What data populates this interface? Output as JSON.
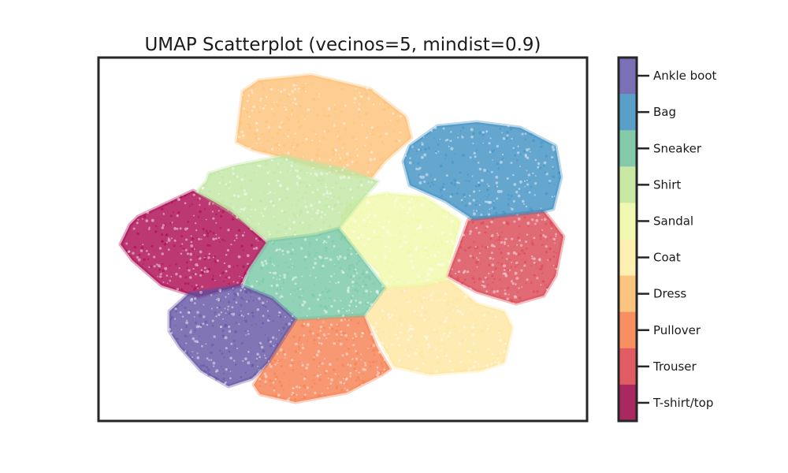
{
  "chart_data": {
    "type": "scatter",
    "title": "UMAP Scatterplot (vecinos=5, mindist=0.9)",
    "xlabel": "",
    "ylabel": "",
    "axis_ticks": false,
    "grid": false,
    "legend": "colorbar-right",
    "series": [
      {
        "name": "T-shirt/top",
        "color": "#a8004a",
        "approx_center": [
          250,
          310
        ]
      },
      {
        "name": "Trouser",
        "color": "#d9414e",
        "approx_center": [
          640,
          320
        ]
      },
      {
        "name": "Pullover",
        "color": "#f57b4a",
        "approx_center": [
          415,
          455
        ]
      },
      {
        "name": "Dress",
        "color": "#fdbf72",
        "approx_center": [
          410,
          150
        ]
      },
      {
        "name": "Coat",
        "color": "#fee59c",
        "approx_center": [
          555,
          420
        ]
      },
      {
        "name": "Sandal",
        "color": "#eff8a6",
        "approx_center": [
          510,
          300
        ]
      },
      {
        "name": "Shirt",
        "color": "#bfe5a0",
        "approx_center": [
          355,
          255
        ]
      },
      {
        "name": "Sneaker",
        "color": "#73c6a4",
        "approx_center": [
          400,
          350
        ]
      },
      {
        "name": "Bag",
        "color": "#3a8dc1",
        "approx_center": [
          610,
          215
        ]
      },
      {
        "name": "Ankle boot",
        "color": "#5f4ea0",
        "approx_center": [
          300,
          430
        ]
      }
    ]
  },
  "colorbar": {
    "labels": [
      "Ankle boot",
      "Bag",
      "Sneaker",
      "Shirt",
      "Sandal",
      "Coat",
      "Dress",
      "Pullover",
      "Trouser",
      "T-shirt/top"
    ],
    "colors": [
      "#7a70b6",
      "#5a9fc8",
      "#84c9a9",
      "#c9e8a4",
      "#f1f8b1",
      "#fef0b0",
      "#fcc57e",
      "#f88f60",
      "#e15c62",
      "#a8285f"
    ]
  }
}
